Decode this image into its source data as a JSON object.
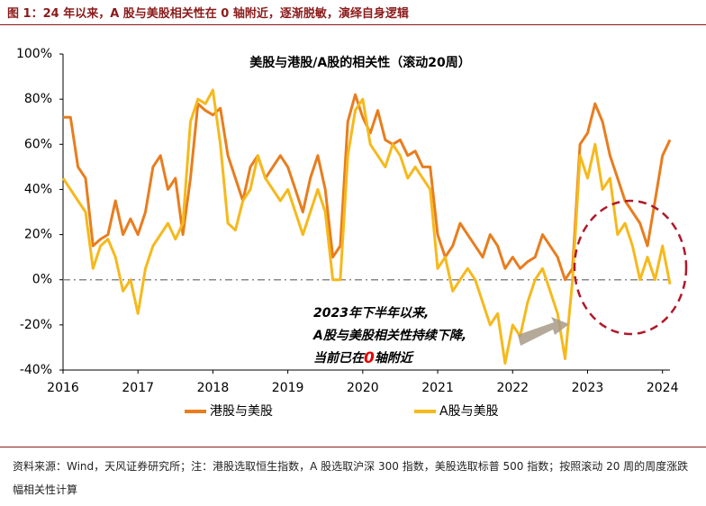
{
  "header": {
    "title": "图 1：24 年以来，A 股与美股相关性在 0 轴附近，逐渐脱敏，演绎自身逻辑"
  },
  "chart_data": {
    "type": "line",
    "title": "美股与港股/A股的相关性（滚动20周）",
    "x": [
      2016,
      2016.1,
      2016.2,
      2016.3,
      2016.4,
      2016.5,
      2016.6,
      2016.7,
      2016.8,
      2016.9,
      2017,
      2017.1,
      2017.2,
      2017.3,
      2017.4,
      2017.5,
      2017.6,
      2017.7,
      2017.8,
      2017.9,
      2018,
      2018.1,
      2018.2,
      2018.3,
      2018.4,
      2018.5,
      2018.6,
      2018.7,
      2018.8,
      2018.9,
      2019,
      2019.1,
      2019.2,
      2019.3,
      2019.4,
      2019.5,
      2019.6,
      2019.7,
      2019.8,
      2019.9,
      2020,
      2020.1,
      2020.2,
      2020.3,
      2020.4,
      2020.5,
      2020.6,
      2020.7,
      2020.8,
      2020.9,
      2021,
      2021.1,
      2021.2,
      2021.3,
      2021.4,
      2021.5,
      2021.6,
      2021.7,
      2021.8,
      2021.9,
      2022,
      2022.1,
      2022.2,
      2022.3,
      2022.4,
      2022.5,
      2022.6,
      2022.7,
      2022.8,
      2022.9,
      2023,
      2023.1,
      2023.2,
      2023.3,
      2023.4,
      2023.5,
      2023.6,
      2023.7,
      2023.8,
      2023.9,
      2024,
      2024.1
    ],
    "series": [
      {
        "name": "港股与美股",
        "color": "#e87d1e",
        "values": [
          72,
          72,
          50,
          45,
          15,
          18,
          20,
          35,
          20,
          27,
          20,
          30,
          50,
          55,
          40,
          45,
          20,
          45,
          78,
          75,
          73,
          76,
          55,
          45,
          35,
          50,
          55,
          45,
          50,
          55,
          50,
          40,
          30,
          45,
          55,
          40,
          10,
          15,
          70,
          82,
          72,
          65,
          75,
          62,
          60,
          62,
          55,
          57,
          50,
          50,
          20,
          10,
          15,
          25,
          20,
          15,
          10,
          20,
          15,
          5,
          10,
          5,
          8,
          10,
          20,
          15,
          10,
          0,
          5,
          60,
          65,
          78,
          70,
          55,
          45,
          35,
          30,
          25,
          15,
          35,
          55,
          62
        ]
      },
      {
        "name": "A股与美股",
        "color": "#f6b91c",
        "values": [
          45,
          40,
          35,
          30,
          5,
          15,
          18,
          10,
          -5,
          0,
          -15,
          5,
          15,
          20,
          25,
          18,
          25,
          70,
          80,
          78,
          84,
          60,
          25,
          22,
          35,
          40,
          55,
          45,
          40,
          35,
          40,
          30,
          20,
          30,
          40,
          30,
          0,
          0,
          55,
          75,
          80,
          60,
          55,
          50,
          60,
          55,
          45,
          50,
          45,
          40,
          5,
          10,
          -5,
          0,
          5,
          0,
          -10,
          -20,
          -15,
          -37,
          -20,
          -25,
          -10,
          0,
          5,
          -5,
          -15,
          -35,
          0,
          55,
          45,
          60,
          40,
          45,
          20,
          25,
          15,
          0,
          10,
          0,
          15,
          -2
        ]
      }
    ],
    "xlim": [
      2016,
      2024.1
    ],
    "xticks": [
      2016,
      2017,
      2018,
      2019,
      2020,
      2021,
      2022,
      2023,
      2024
    ],
    "ylim": [
      -40,
      100
    ],
    "yticks": [
      {
        "value": -40,
        "label": "-40%"
      },
      {
        "value": -20,
        "label": "-20%"
      },
      {
        "value": 0,
        "label": "0%"
      },
      {
        "value": 20,
        "label": "20%"
      },
      {
        "value": 40,
        "label": "40%"
      },
      {
        "value": 60,
        "label": "60%"
      },
      {
        "value": 80,
        "label": "80%"
      },
      {
        "value": 100,
        "label": "100%"
      }
    ],
    "reference_line": 0,
    "annotation": {
      "lines": [
        "2023年下半年以来,",
        "A股与美股相关性持续下降,"
      ],
      "last_line": [
        "当前已在",
        "0",
        "轴附近"
      ]
    }
  },
  "source": "资料来源：Wind，天风证券研究所；注：港股选取恒生指数，A 股选取沪深 300 指数，美股选取标普 500 指数；按照滚动 20 周的周度涨跌幅相关性计算"
}
